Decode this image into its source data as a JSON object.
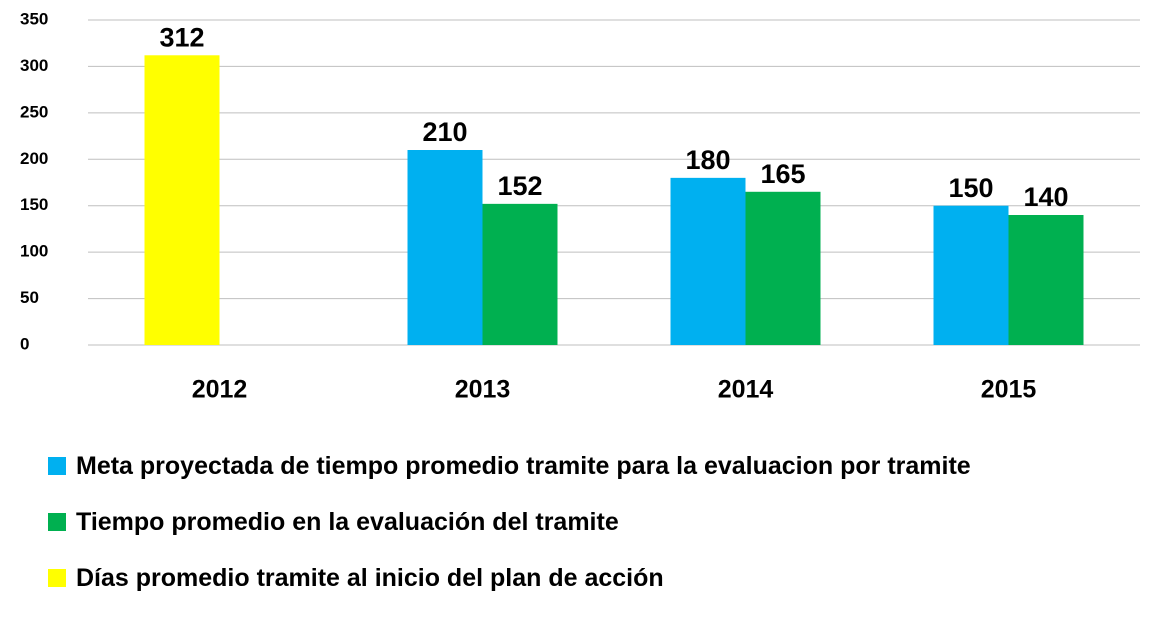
{
  "chart_data": {
    "type": "bar",
    "categories": [
      "2012",
      "2013",
      "2014",
      "2015"
    ],
    "series": [
      {
        "name": "Meta proyectada de tiempo promedio tramite para la evaluacion por tramite",
        "color": "#00b0f0",
        "values": [
          null,
          210,
          180,
          150
        ]
      },
      {
        "name": "Tiempo promedio en la evaluación del tramite",
        "color": "#00b050",
        "values": [
          null,
          152,
          165,
          140
        ]
      },
      {
        "name": "Días promedio tramite al inicio del plan de acción",
        "color": "#ffff00",
        "values": [
          312,
          null,
          null,
          null
        ]
      }
    ],
    "ylim": [
      0,
      350
    ],
    "yticks": [
      0,
      50,
      100,
      150,
      200,
      250,
      300,
      350
    ],
    "grid": true
  }
}
